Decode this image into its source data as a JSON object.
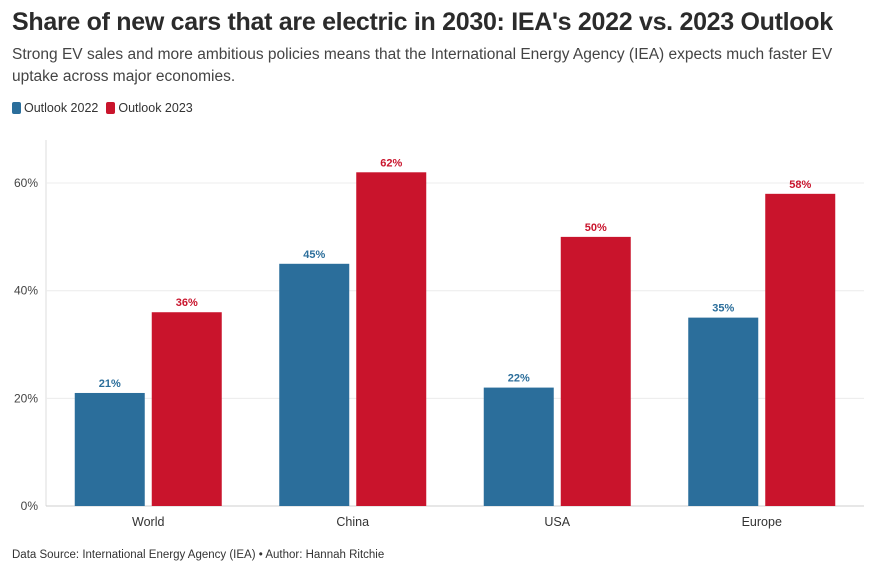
{
  "title": "Share of new cars that are electric in 2030: IEA's 2022 vs. 2023 Outlook",
  "subtitle": "Strong EV sales and more ambitious policies means that the International Energy Agency (IEA) expects much faster EV uptake across major economies.",
  "footer": "Data Source: International Energy Agency (IEA) • Author: Hannah Ritchie",
  "chart_data": {
    "type": "bar",
    "categories": [
      "World",
      "China",
      "USA",
      "Europe"
    ],
    "series": [
      {
        "name": "Outlook 2022",
        "color": "#2b6e9b",
        "values": [
          21,
          45,
          22,
          35
        ]
      },
      {
        "name": "Outlook 2023",
        "color": "#c9142c",
        "values": [
          36,
          62,
          50,
          58
        ]
      }
    ],
    "ylim": [
      0,
      68
    ],
    "yticks": [
      0,
      20,
      40,
      60
    ],
    "ytick_labels": [
      "0%",
      "20%",
      "40%",
      "60%"
    ],
    "value_suffix": "%",
    "grid": true,
    "legend": "top-left"
  }
}
